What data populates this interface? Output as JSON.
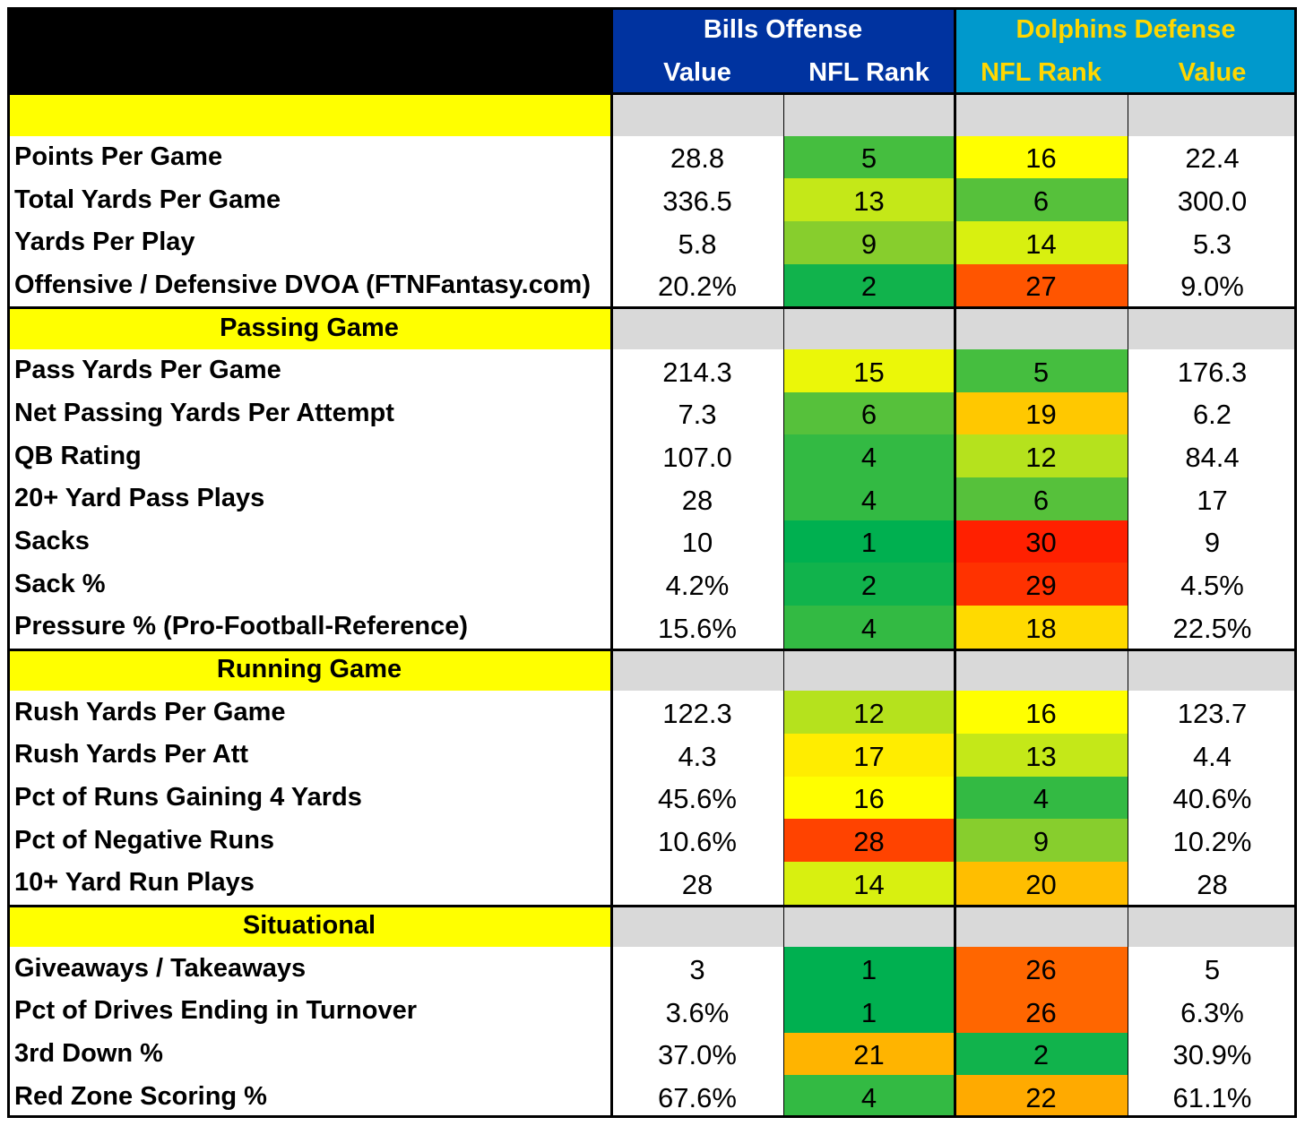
{
  "header": {
    "bills_group": "Bills Offense",
    "dolphins_group": "Dolphins Defense",
    "bills_value_label": "Value",
    "bills_rank_label": "NFL Rank",
    "dolphins_rank_label": "NFL Rank",
    "dolphins_value_label": "Value"
  },
  "colors": {
    "bills_header_bg": "#0033a0",
    "dolphins_header_bg": "#0099cc",
    "dolphins_header_text": "#ffd700",
    "section_bg": "#ffff00",
    "section_fill": "#d9d9d9",
    "corner_bg": "#000000"
  },
  "sections": [
    {
      "title": "",
      "rows": [
        {
          "label": "Points Per Game",
          "bills_value": "28.8",
          "bills_rank": "5",
          "dolphins_rank": "16",
          "dolphins_value": "22.4"
        },
        {
          "label": "Total Yards Per Game",
          "bills_value": "336.5",
          "bills_rank": "13",
          "dolphins_rank": "6",
          "dolphins_value": "300.0"
        },
        {
          "label": "Yards Per Play",
          "bills_value": "5.8",
          "bills_rank": "9",
          "dolphins_rank": "14",
          "dolphins_value": "5.3"
        },
        {
          "label": "Offensive / Defensive DVOA (FTNFantasy.com)",
          "bills_value": "20.2%",
          "bills_rank": "2",
          "dolphins_rank": "27",
          "dolphins_value": "9.0%"
        }
      ]
    },
    {
      "title": "Passing Game",
      "rows": [
        {
          "label": "Pass Yards Per Game",
          "bills_value": "214.3",
          "bills_rank": "15",
          "dolphins_rank": "5",
          "dolphins_value": "176.3"
        },
        {
          "label": "Net Passing Yards Per Attempt",
          "bills_value": "7.3",
          "bills_rank": "6",
          "dolphins_rank": "19",
          "dolphins_value": "6.2"
        },
        {
          "label": "QB Rating",
          "bills_value": "107.0",
          "bills_rank": "4",
          "dolphins_rank": "12",
          "dolphins_value": "84.4"
        },
        {
          "label": "20+ Yard Pass Plays",
          "bills_value": "28",
          "bills_rank": "4",
          "dolphins_rank": "6",
          "dolphins_value": "17"
        },
        {
          "label": "Sacks",
          "bills_value": "10",
          "bills_rank": "1",
          "dolphins_rank": "30",
          "dolphins_value": "9"
        },
        {
          "label": "Sack %",
          "bills_value": "4.2%",
          "bills_rank": "2",
          "dolphins_rank": "29",
          "dolphins_value": "4.5%"
        },
        {
          "label": "Pressure % (Pro-Football-Reference)",
          "bills_value": "15.6%",
          "bills_rank": "4",
          "dolphins_rank": "18",
          "dolphins_value": "22.5%"
        }
      ]
    },
    {
      "title": "Running Game",
      "rows": [
        {
          "label": "Rush Yards Per Game",
          "bills_value": "122.3",
          "bills_rank": "12",
          "dolphins_rank": "16",
          "dolphins_value": "123.7"
        },
        {
          "label": "Rush Yards Per Att",
          "bills_value": "4.3",
          "bills_rank": "17",
          "dolphins_rank": "13",
          "dolphins_value": "4.4"
        },
        {
          "label": "Pct of Runs Gaining 4 Yards",
          "bills_value": "45.6%",
          "bills_rank": "16",
          "dolphins_rank": "4",
          "dolphins_value": "40.6%"
        },
        {
          "label": "Pct of Negative Runs",
          "bills_value": "10.6%",
          "bills_rank": "28",
          "dolphins_rank": "9",
          "dolphins_value": "10.2%"
        },
        {
          "label": "10+ Yard Run Plays",
          "bills_value": "28",
          "bills_rank": "14",
          "dolphins_rank": "20",
          "dolphins_value": "28"
        }
      ]
    },
    {
      "title": "Situational",
      "rows": [
        {
          "label": "Giveaways / Takeaways",
          "bills_value": "3",
          "bills_rank": "1",
          "dolphins_rank": "26",
          "dolphins_value": "5"
        },
        {
          "label": "Pct of Drives Ending in Turnover",
          "bills_value": "3.6%",
          "bills_rank": "1",
          "dolphins_rank": "26",
          "dolphins_value": "6.3%"
        },
        {
          "label": "3rd Down %",
          "bills_value": "37.0%",
          "bills_rank": "21",
          "dolphins_rank": "2",
          "dolphins_value": "30.9%"
        },
        {
          "label": "Red Zone Scoring %",
          "bills_value": "67.6%",
          "bills_rank": "4",
          "dolphins_rank": "22",
          "dolphins_value": "61.1%"
        }
      ]
    }
  ]
}
